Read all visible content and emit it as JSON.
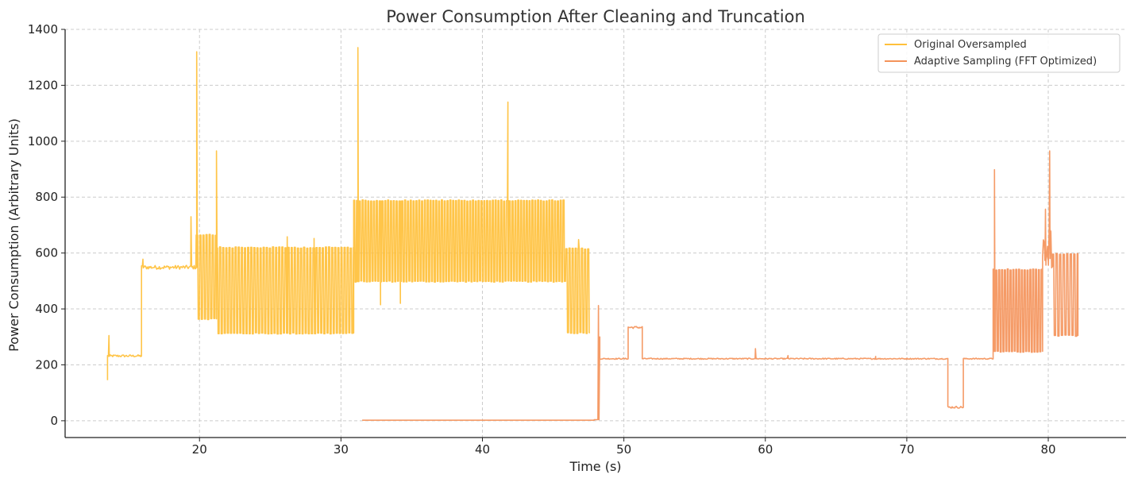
{
  "chart_data": {
    "type": "line",
    "title": "Power Consumption After Cleaning and Truncation",
    "xlabel": "Time (s)",
    "ylabel": "Power Consumption (Arbitrary Units)",
    "xlim": [
      10.5,
      85.5
    ],
    "ylim": [
      -60,
      1400
    ],
    "xticks": [
      20,
      30,
      40,
      50,
      60,
      70,
      80
    ],
    "yticks": [
      0,
      200,
      400,
      600,
      800,
      1000,
      1200,
      1400
    ],
    "grid": true,
    "legend_position": "top-right",
    "series": [
      {
        "name": "Original Oversampled",
        "color": "#FFC03A",
        "segments": [
          {
            "x_start": 13.5,
            "x_end": 15.9,
            "low": 228,
            "high": 236,
            "kind": "noise"
          },
          {
            "x_start": 15.9,
            "x_end": 19.8,
            "low": 542,
            "high": 556,
            "kind": "noise"
          },
          {
            "x_start": 19.8,
            "x_end": 21.2,
            "low": 362,
            "high": 668,
            "kind": "oscillation",
            "period": 0.22
          },
          {
            "x_start": 21.2,
            "x_end": 30.9,
            "low": 310,
            "high": 622,
            "kind": "oscillation",
            "period": 0.22
          },
          {
            "x_start": 30.9,
            "x_end": 45.9,
            "low": 496,
            "high": 790,
            "kind": "oscillation",
            "period": 0.2
          },
          {
            "x_start": 45.9,
            "x_end": 47.6,
            "low": 312,
            "high": 618,
            "kind": "oscillation",
            "period": 0.22
          }
        ],
        "spikes": [
          {
            "x": 13.6,
            "y": 305
          },
          {
            "x": 16.0,
            "y": 578
          },
          {
            "x": 19.4,
            "y": 730
          },
          {
            "x": 19.8,
            "y": 1320
          },
          {
            "x": 21.2,
            "y": 965
          },
          {
            "x": 26.2,
            "y": 658
          },
          {
            "x": 28.1,
            "y": 652
          },
          {
            "x": 31.2,
            "y": 1335
          },
          {
            "x": 32.8,
            "y": 415
          },
          {
            "x": 34.2,
            "y": 420
          },
          {
            "x": 41.8,
            "y": 1140
          },
          {
            "x": 46.8,
            "y": 648
          }
        ],
        "start_point": {
          "x": 13.5,
          "y": 145
        }
      },
      {
        "name": "Adaptive Sampling (FFT Optimized)",
        "color": "#F4935A",
        "segments": [
          {
            "x_start": 31.5,
            "x_end": 47.9,
            "low": 2,
            "high": 4,
            "kind": "flat"
          },
          {
            "x_start": 47.9,
            "x_end": 48.3,
            "low": 4,
            "high": 300,
            "kind": "ramp"
          },
          {
            "x_start": 48.3,
            "x_end": 50.3,
            "low": 220,
            "high": 224,
            "kind": "noise"
          },
          {
            "x_start": 50.3,
            "x_end": 51.3,
            "low": 330,
            "high": 338,
            "kind": "noise"
          },
          {
            "x_start": 51.3,
            "x_end": 72.9,
            "low": 220,
            "high": 224,
            "kind": "noise"
          },
          {
            "x_start": 72.9,
            "x_end": 74.0,
            "low": 45,
            "high": 52,
            "kind": "noise"
          },
          {
            "x_start": 74.0,
            "x_end": 76.1,
            "low": 220,
            "high": 224,
            "kind": "noise"
          },
          {
            "x_start": 76.1,
            "x_end": 79.6,
            "low": 245,
            "high": 543,
            "kind": "oscillation",
            "period": 0.2
          },
          {
            "x_start": 79.6,
            "x_end": 80.3,
            "low": 545,
            "high": 700,
            "kind": "noise"
          },
          {
            "x_start": 80.3,
            "x_end": 82.1,
            "low": 302,
            "high": 600,
            "kind": "oscillation",
            "period": 0.25
          }
        ],
        "spikes": [
          {
            "x": 48.2,
            "y": 412
          },
          {
            "x": 59.3,
            "y": 258
          },
          {
            "x": 61.6,
            "y": 233
          },
          {
            "x": 67.8,
            "y": 230
          },
          {
            "x": 76.2,
            "y": 898
          },
          {
            "x": 79.8,
            "y": 757
          },
          {
            "x": 80.1,
            "y": 965
          }
        ]
      }
    ]
  }
}
